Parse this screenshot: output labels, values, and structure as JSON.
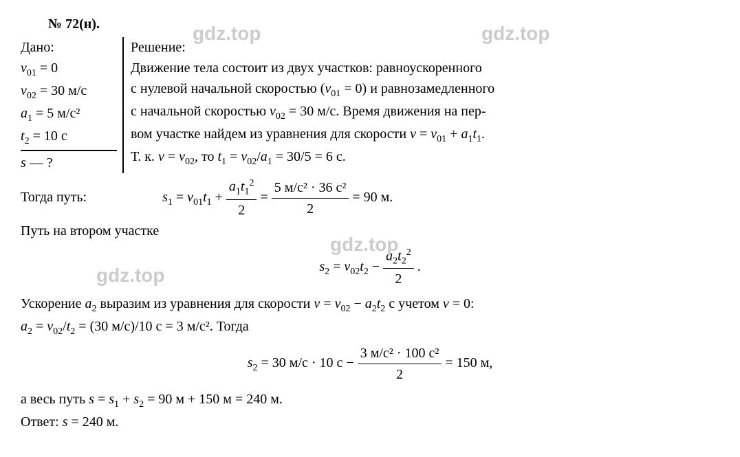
{
  "problem_number": "№ 72(н).",
  "dano": {
    "title": "Дано:",
    "v01": "v₀₁ = 0",
    "v02_label": "v",
    "v02_sub": "02",
    "v02_val": " = 30 м/с",
    "a1_label": "a",
    "a1_sub": "1",
    "a1_val": " = 5 м/с²",
    "t2_label": "t",
    "t2_sub": "2",
    "t2_val": " = 10 с",
    "find": "s — ?"
  },
  "solution": {
    "title": "Решение:",
    "line1": "Движение тела состоит из двух участков: равноускоренного",
    "line2_a": "с нулевой начальной скоростью (",
    "line2_b": " = 0) и равнозамедленного",
    "line3_a": "с начальной скоростью ",
    "line3_b": " = 30 м/с. Время движения на пер-",
    "line4_a": "вом участке найдем из уравнения для скорости ",
    "line5_a": "Т. к. ",
    "line5_b": ", то ",
    "line5_c": " = 30/5 = 6 с."
  },
  "below": {
    "togda": "Тогда путь:",
    "s1_eq": " = 90 м.",
    "path2": "Путь на втором участке",
    "accel_line_a": "Ускорение ",
    "accel_line_b": " выразим из уравнения для скорости ",
    "accel_line_c": " с учетом ",
    "accel_line_d": " = 0:",
    "a2_calc": " = (30 м/с)/10 с = 3 м/с². Тогда",
    "s2_result": " = 30 м/с · 10 с − ",
    "s2_equals": " = 150 м,",
    "whole_path_a": "а весь путь ",
    "whole_path_b": " = 90 м + 150 м = 240 м.",
    "answer": "Ответ: s = 240 м."
  },
  "formulas": {
    "s1_num": "5 м/с² · 36 с²",
    "s1_den": "2",
    "s2_num_a": "3 м/с² · 100 с²",
    "s2_den": "2"
  },
  "watermarks": {
    "text": "gdz.top"
  }
}
